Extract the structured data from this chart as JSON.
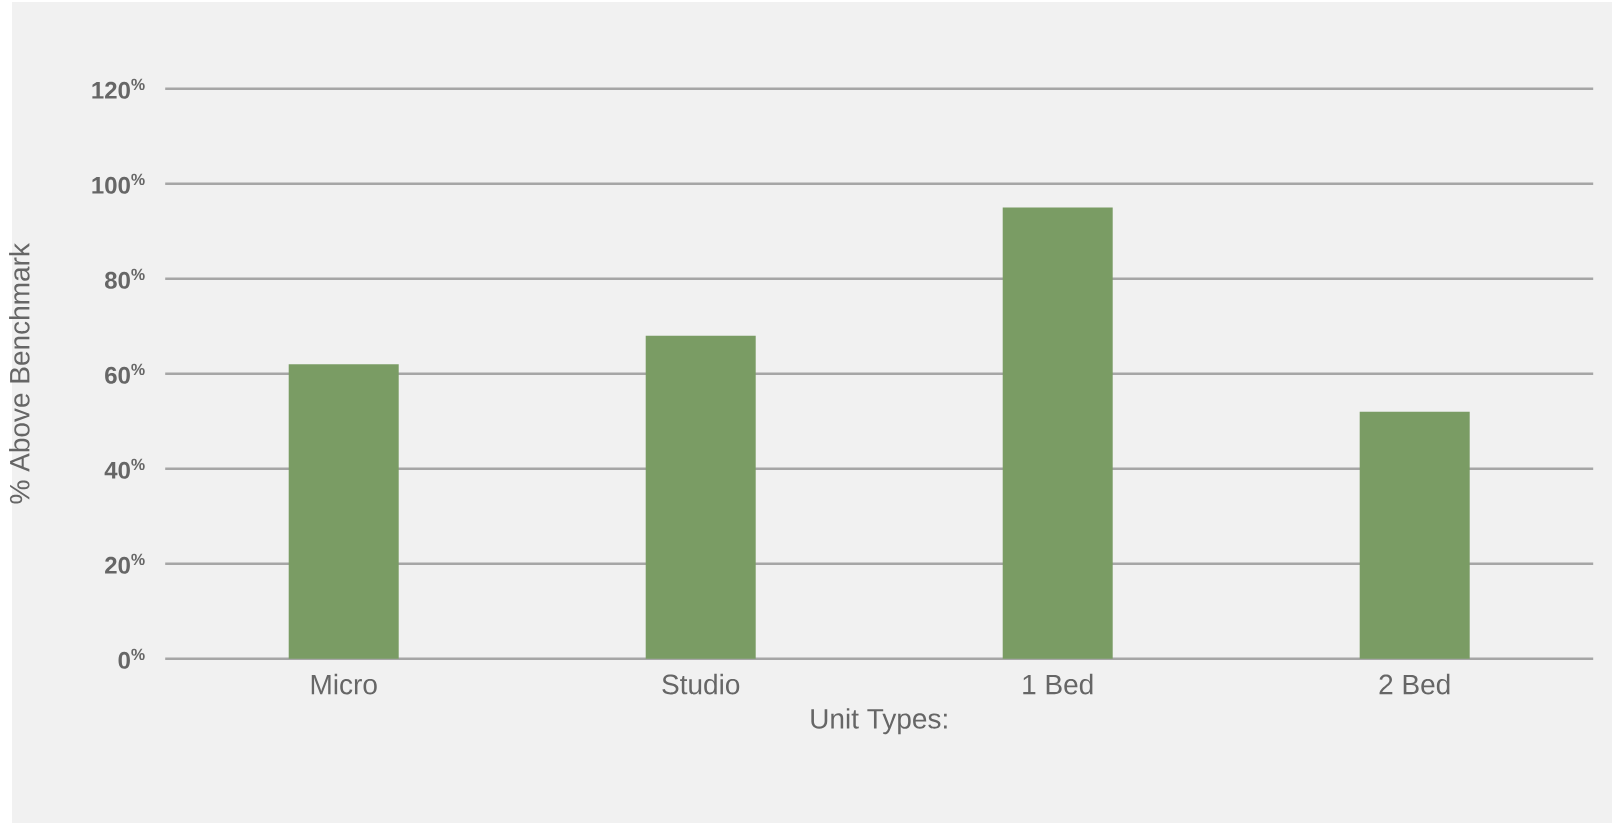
{
  "chart_data": {
    "type": "bar",
    "xlabel": "Unit Types:",
    "ylabel": "% Above Benchmark",
    "categories": [
      "Micro",
      "Studio",
      "1 Bed",
      "2 Bed"
    ],
    "values": [
      62,
      68,
      95,
      52
    ],
    "color": "#7a9c64",
    "ylim": [
      0,
      120
    ],
    "yticks": [
      {
        "value": 0,
        "label": "0$^{%}$"
      },
      {
        "value": 20,
        "label": "20$^{%}$"
      },
      {
        "value": 40,
        "label": "40$^{%}$"
      },
      {
        "value": 60,
        "label": "60$^{%}$"
      },
      {
        "value": 80,
        "label": "80$^{%}$"
      },
      {
        "value": 100,
        "label": "100$^{%}$"
      },
      {
        "value": 120,
        "label": "120$^{%}$"
      }
    ],
    "grid": "y"
  }
}
